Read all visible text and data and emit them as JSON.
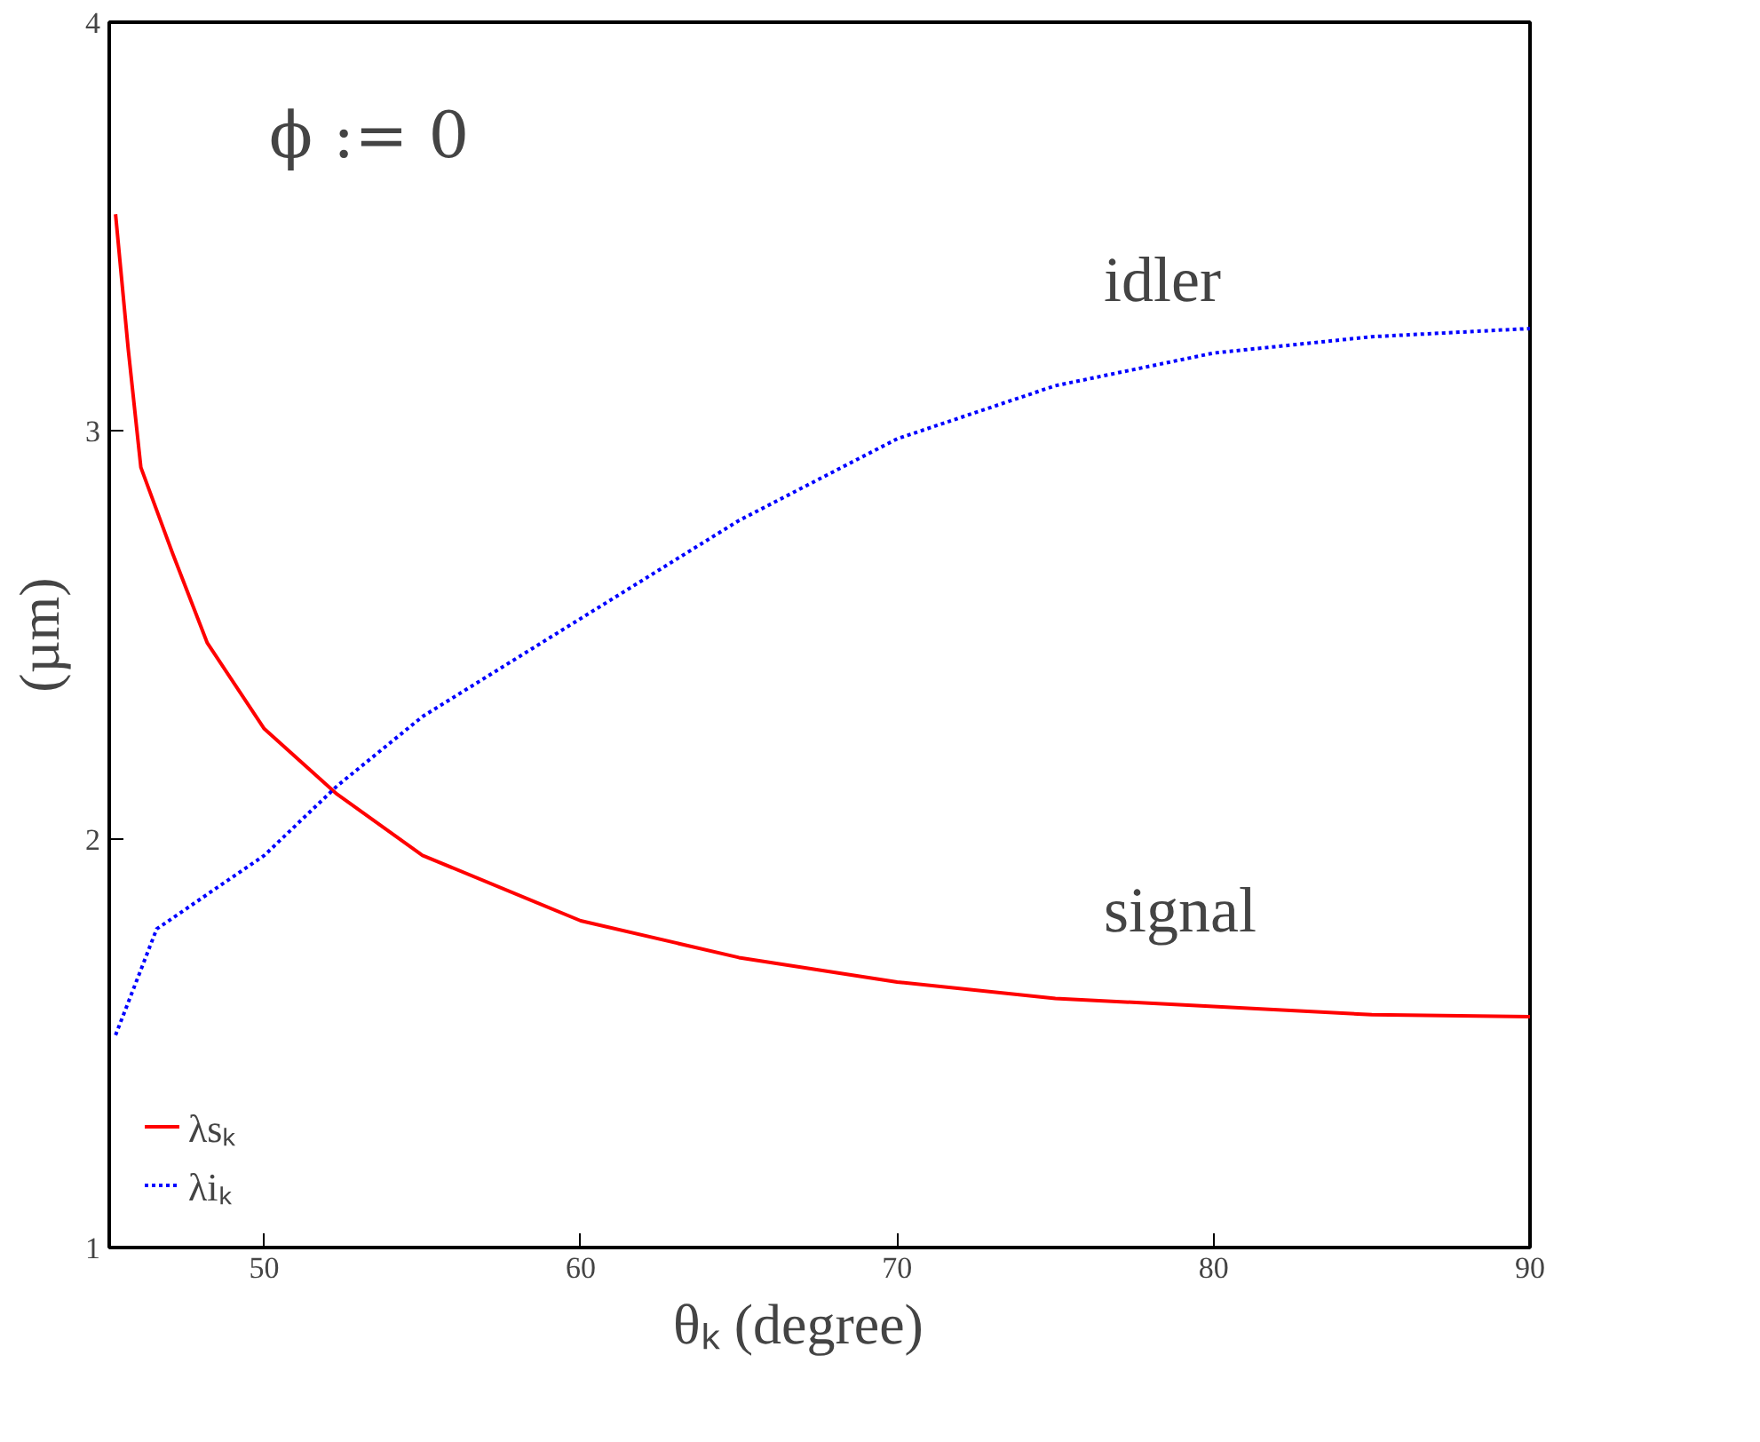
{
  "chart_data": {
    "type": "line",
    "xlabel": "θₖ    (degree)",
    "ylabel": "(µm)",
    "xlim": [
      45.1,
      90
    ],
    "ylim": [
      1,
      4
    ],
    "xticks": [
      50,
      60,
      70,
      80,
      90
    ],
    "yticks": [
      1,
      2,
      3,
      4
    ],
    "grid": false,
    "legend": "bottom left",
    "marker": "none",
    "series": [
      {
        "name": "λsₖ",
        "color": "#ff0000",
        "line_style": "solid",
        "x": [
          45.3,
          45.7,
          46.1,
          47.1,
          48.2,
          50,
          52.3,
          55,
          60,
          65,
          70,
          75,
          80,
          85,
          90
        ],
        "values": [
          3.53,
          3.2,
          2.91,
          2.7,
          2.48,
          2.27,
          2.11,
          1.96,
          1.8,
          1.71,
          1.65,
          1.61,
          1.59,
          1.57,
          1.565
        ]
      },
      {
        "name": "λiₖ",
        "color": "#0000ff",
        "line_style": "dotted",
        "x": [
          45.3,
          46.6,
          50,
          52.3,
          55,
          60,
          65,
          70,
          75,
          80,
          85,
          90
        ],
        "values": [
          1.52,
          1.78,
          1.96,
          2.13,
          2.3,
          2.54,
          2.78,
          2.98,
          3.11,
          3.19,
          3.23,
          3.25
        ]
      }
    ],
    "annotations": [
      "ϕ  := 0",
      "idler",
      "signal"
    ]
  }
}
